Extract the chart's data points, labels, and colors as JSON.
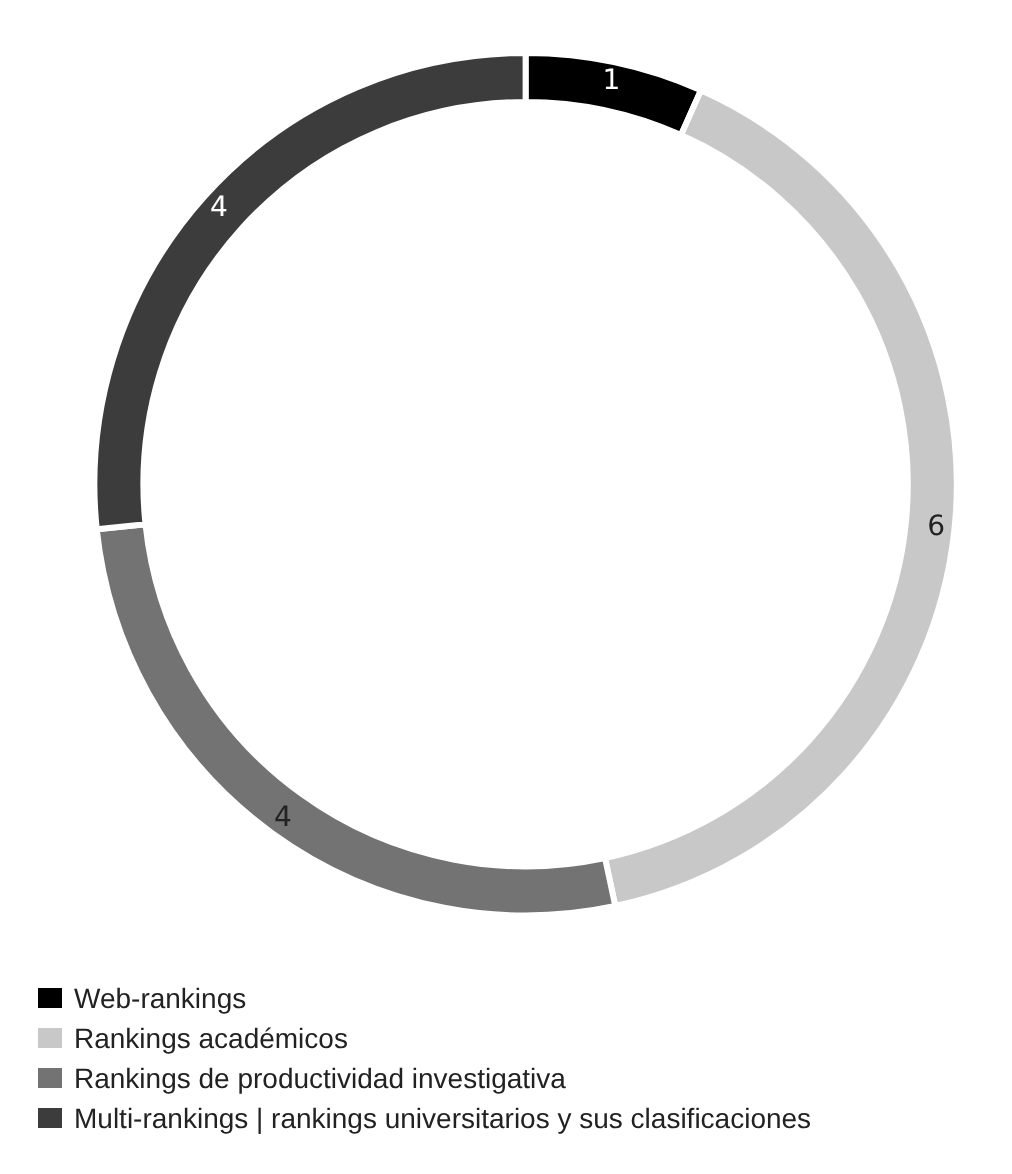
{
  "chart_data": {
    "type": "donut",
    "categories": [
      "Web-rankings",
      "Rankings académicos",
      "Rankings de productividad investigativa",
      "Multi-rankings | rankings universitarios y sus clasificaciones"
    ],
    "values": [
      1,
      6,
      4,
      4
    ],
    "colors": [
      "#000000",
      "#c8c8c8",
      "#737373",
      "#3c3c3c"
    ],
    "data_labels": true,
    "legend": "bottom left"
  }
}
